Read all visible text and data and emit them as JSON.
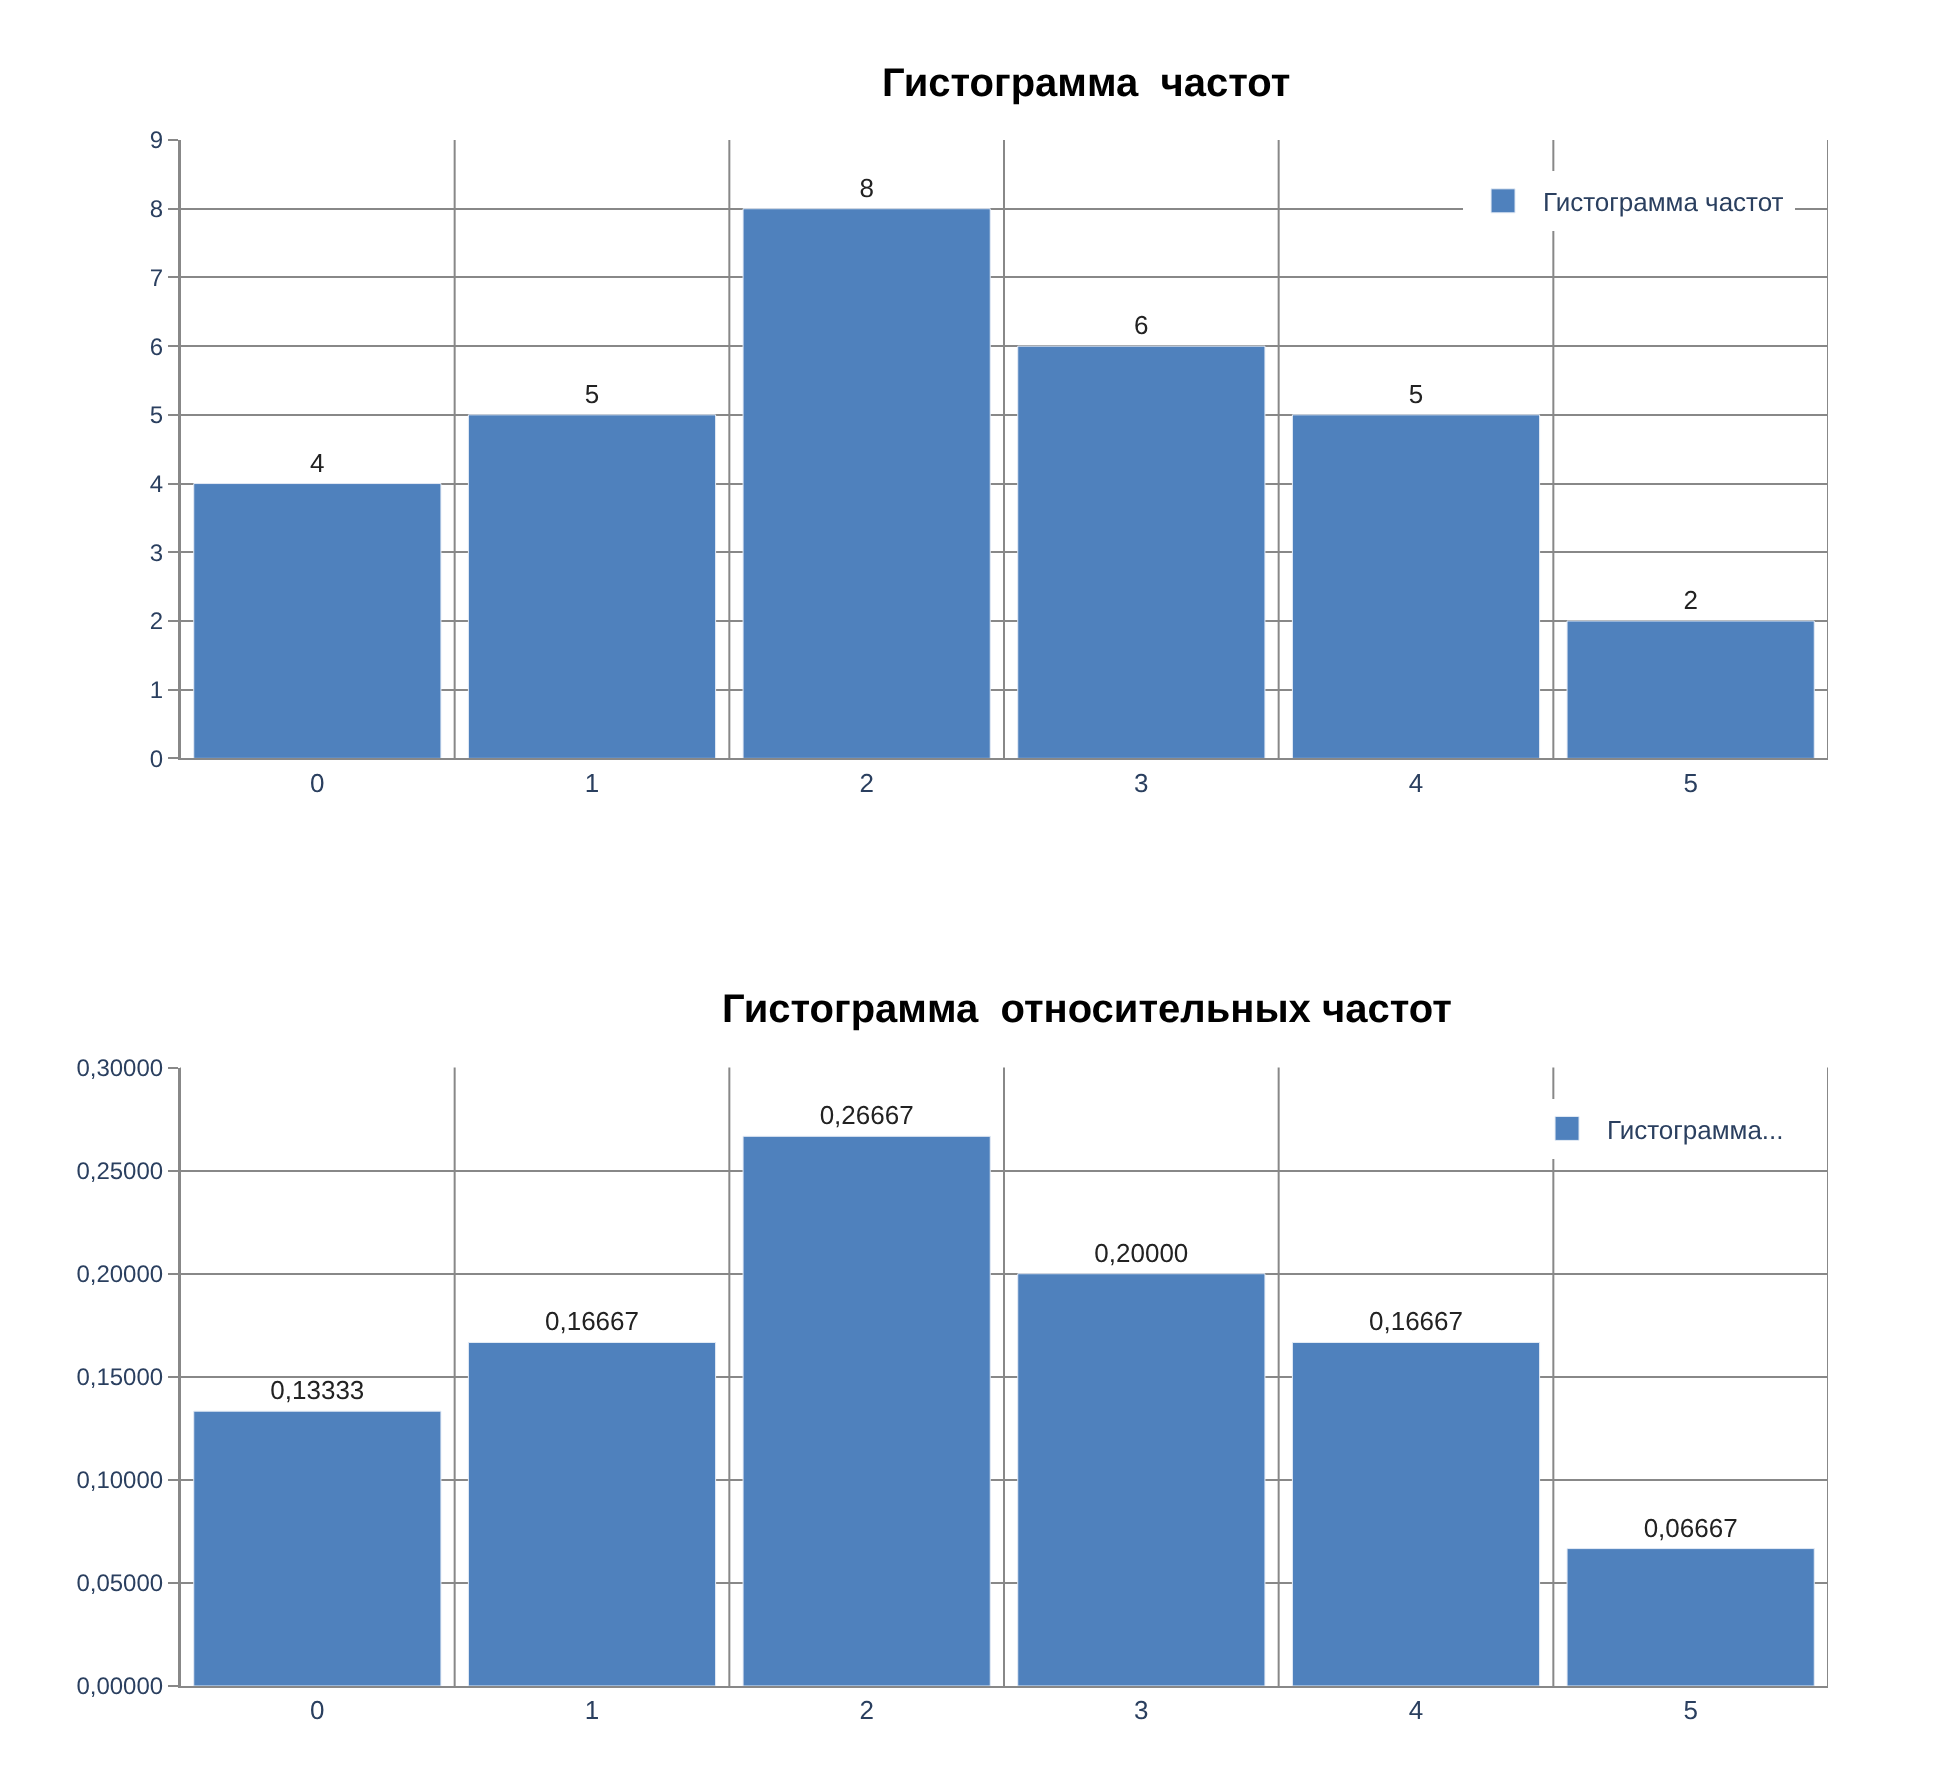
{
  "chart_data": [
    {
      "type": "bar",
      "title": "Гистограмма  частот",
      "categories": [
        "0",
        "1",
        "2",
        "3",
        "4",
        "5"
      ],
      "series": [
        {
          "name": "Гистограмма частот",
          "color": "#4f81bd",
          "values": [
            4,
            5,
            8,
            6,
            5,
            2
          ]
        }
      ],
      "ylim": [
        0,
        9
      ],
      "yticks": [
        0,
        1,
        2,
        3,
        4,
        5,
        6,
        7,
        8,
        9
      ],
      "grid": true,
      "legend": "top right",
      "data_labels": true
    },
    {
      "type": "bar",
      "title": "Гистограмма  относительных частот",
      "categories": [
        "0",
        "1",
        "2",
        "3",
        "4",
        "5"
      ],
      "series": [
        {
          "name": "Гистограмма...",
          "color": "#4f81bd",
          "values": [
            0.13333,
            0.16667,
            0.26667,
            0.2,
            0.16667,
            0.06667
          ],
          "value_labels": [
            "0,13333",
            "0,16667",
            "0,26667",
            "0,20000",
            "0,16667",
            "0,06667"
          ]
        }
      ],
      "ylim": [
        0,
        0.3
      ],
      "yticks": [
        {
          "value": 0,
          "label": "0,00000"
        },
        {
          "value": 0.05,
          "label": "0,05000"
        },
        {
          "value": 0.1,
          "label": "0,10000"
        },
        {
          "value": 0.15,
          "label": "0,15000"
        },
        {
          "value": 0.2,
          "label": "0,20000"
        },
        {
          "value": 0.25,
          "label": "0,25000"
        },
        {
          "value": 0.3,
          "label": "0,30000"
        }
      ],
      "grid": true,
      "legend": "top right"
    }
  ]
}
